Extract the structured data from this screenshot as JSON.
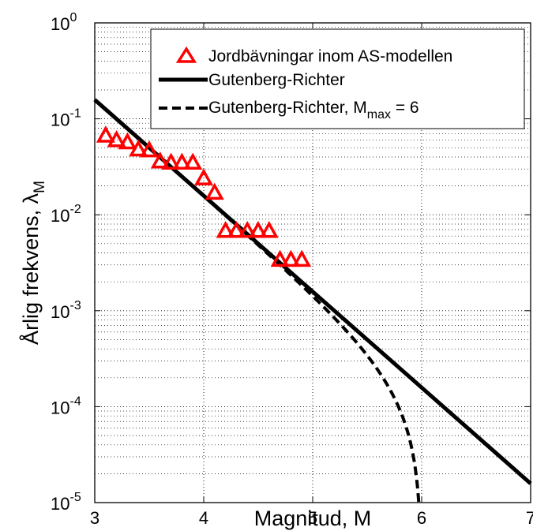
{
  "chart_data": {
    "type": "scatter",
    "xlabel": "Magnitud, M",
    "ylabel": "Årlig frekvens, λ",
    "ylabel_sub": "M",
    "xlim": [
      3,
      7
    ],
    "ylim": [
      1e-05,
      1
    ],
    "yscale": "log",
    "grid": true,
    "legend_position": "top-right",
    "x_ticks": [
      "3",
      "4",
      "5",
      "6",
      "7"
    ],
    "y_ticks": [
      {
        "value": 1e-05,
        "base": "10",
        "exp": "-5"
      },
      {
        "value": 0.0001,
        "base": "10",
        "exp": "-4"
      },
      {
        "value": 0.001,
        "base": "10",
        "exp": "-3"
      },
      {
        "value": 0.01,
        "base": "10",
        "exp": "-2"
      },
      {
        "value": 0.1,
        "base": "10",
        "exp": "-1"
      },
      {
        "value": 1,
        "base": "10",
        "exp": "0"
      }
    ],
    "series": [
      {
        "name": "Jordbävningar inom AS-modellen",
        "kind": "markers",
        "color": "#ff0000",
        "x": [
          3.1,
          3.2,
          3.3,
          3.4,
          3.5,
          3.6,
          3.7,
          3.8,
          3.9,
          4.0,
          4.1,
          4.2,
          4.3,
          4.4,
          4.5,
          4.6,
          4.7,
          4.8,
          4.9
        ],
        "y": [
          0.067,
          0.06,
          0.057,
          0.048,
          0.047,
          0.036,
          0.035,
          0.035,
          0.035,
          0.024,
          0.017,
          0.0068,
          0.0068,
          0.0068,
          0.0068,
          0.0068,
          0.0034,
          0.0034,
          0.0034
        ]
      },
      {
        "name": "Gutenberg-Richter",
        "kind": "line",
        "color": "#000000",
        "x": [
          3,
          7
        ],
        "y": [
          0.158,
          1.58e-05
        ]
      },
      {
        "name": "Gutenberg-Richter, M",
        "name_sub": "max",
        "name_suffix": " = 6",
        "kind": "dashed",
        "color": "#000000",
        "mmax": 6
      }
    ]
  }
}
